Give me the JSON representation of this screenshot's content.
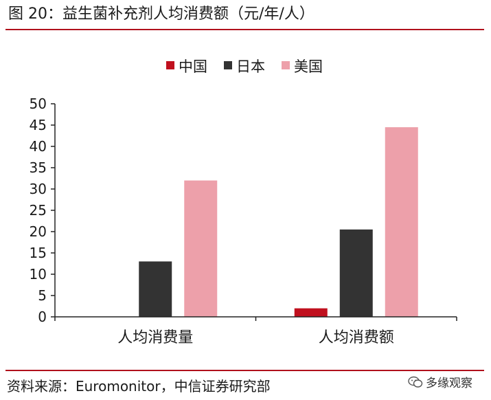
{
  "figure": {
    "title": "图 20：益生菌补充剂人均消费额（元/年/人）",
    "source": "资料来源：Euromonitor，中信证券研究部",
    "watermark": "多缘观察"
  },
  "chart_data": {
    "type": "bar",
    "title": "",
    "xlabel": "",
    "ylabel": "",
    "categories": [
      "人均消费量",
      "人均消费额"
    ],
    "series": [
      {
        "name": "中国",
        "color": "#c0101e",
        "values": [
          0,
          2
        ]
      },
      {
        "name": "日本",
        "color": "#333333",
        "values": [
          13,
          20.5
        ]
      },
      {
        "name": "美国",
        "color": "#eda0aa",
        "values": [
          32,
          44.5
        ]
      }
    ],
    "ylim": [
      0,
      50
    ],
    "yticks": [
      0,
      5,
      10,
      15,
      20,
      25,
      30,
      35,
      40,
      45,
      50
    ],
    "legend_position": "top-center",
    "grid": false
  }
}
